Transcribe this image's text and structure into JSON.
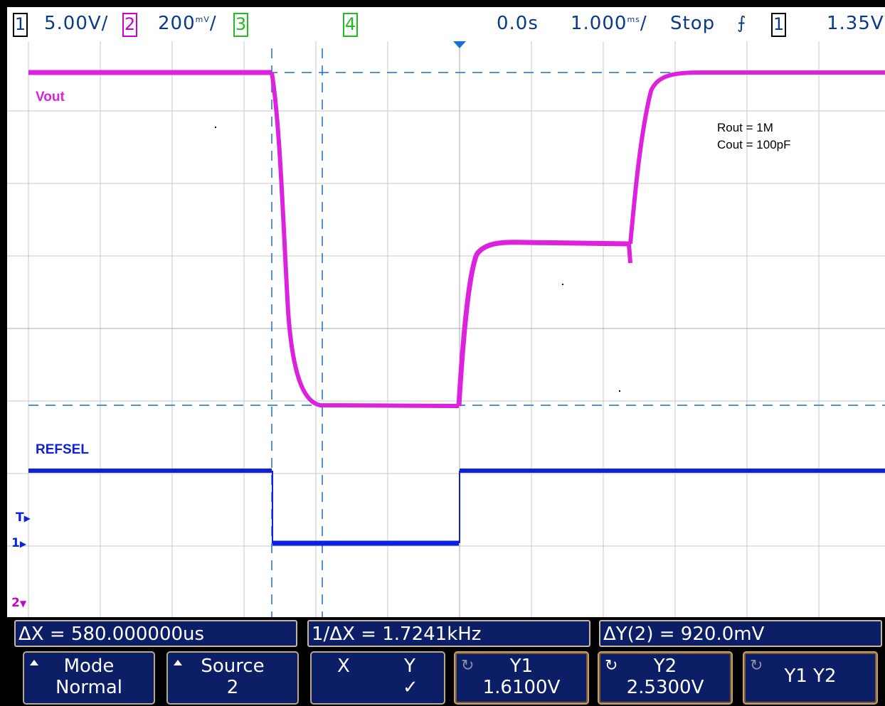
{
  "top_status": {
    "ch1_num": "1",
    "ch1_scale": "5.00V/",
    "ch2_num": "2",
    "ch2_scale": "200",
    "ch2_unit": "mV",
    "ch2_slash": "/",
    "ch3_num": "3",
    "ch4_num": "4",
    "trigger_delay": "0.0s",
    "timebase_value": "1.000",
    "timebase_unit": "ms",
    "timebase_slash": "/",
    "run_state": "Stop",
    "trigger_source": "1",
    "trigger_level": "1.35V"
  },
  "traces": {
    "vout_label": "Vout",
    "refsel_label": "REFSEL",
    "vout_color": "#dd22dd",
    "refsel_color": "#1020e0"
  },
  "annotation": {
    "line1": "Rout = 1M",
    "line2": "Cout = 100pF"
  },
  "left_markers": {
    "trigger": "T",
    "ch1": "1",
    "ch2": "2"
  },
  "measurements": {
    "dx": "ΔX = 580.000000us",
    "inv_dx": "1/ΔX = 1.7241kHz",
    "dy": "ΔY(2) = 920.0mV"
  },
  "softkeys": {
    "mode_title": "Mode",
    "mode_value": "Normal",
    "source_title": "Source",
    "source_value": "2",
    "x_label": "X",
    "y_label": "Y",
    "y_check": "✓",
    "y1_title": "Y1",
    "y1_value": "1.6100V",
    "y2_title": "Y2",
    "y2_value": "2.5300V",
    "y1y2_label": "Y1 Y2"
  }
}
